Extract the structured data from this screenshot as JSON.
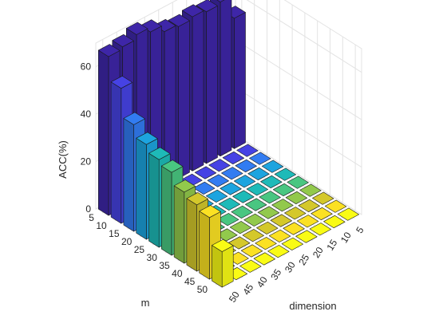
{
  "chart_data": {
    "type": "bar3d",
    "xlabel": "dimension",
    "ylabel": "m",
    "zlabel": "ACC(%)",
    "dimension_ticks": [
      "5",
      "10",
      "15",
      "20",
      "25",
      "30",
      "35",
      "40",
      "45",
      "50"
    ],
    "m_ticks": [
      "5",
      "10",
      "15",
      "20",
      "25",
      "30",
      "35",
      "40",
      "45",
      "50"
    ],
    "z_ticks": [
      "0",
      "20",
      "40",
      "60"
    ],
    "zlim": [
      0,
      70
    ],
    "grid": true,
    "colormap": "parula",
    "colormap_stops": [
      "#3e26a8",
      "#4746eb",
      "#2c8bf3",
      "#15b1d5",
      "#25c2a0",
      "#76cc5b",
      "#c9c22d",
      "#fbde25",
      "#f9fb15"
    ],
    "row_dimension": "50",
    "row_values": [
      55,
      57,
      45,
      40,
      37,
      35,
      30,
      28,
      26,
      15
    ],
    "col_m": "5",
    "col_values": [
      55,
      65,
      64,
      65,
      64,
      65,
      68,
      70,
      68,
      67
    ],
    "zero_value": 0
  }
}
